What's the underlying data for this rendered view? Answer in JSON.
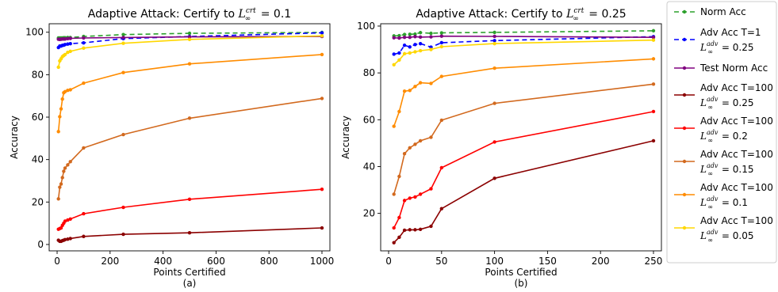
{
  "chart_data": [
    {
      "type": "line",
      "title": "Adaptive Attack: Certify to ",
      "title_math": "L",
      "title_sup": "crt",
      "title_sub": "∞",
      "title_value": " = 0.1",
      "xlabel": "Points Certified",
      "ylabel": "Accuracy",
      "caption": "(a)",
      "xlim": [
        -30,
        1030
      ],
      "ylim": [
        -3,
        104
      ],
      "xticks": [
        0,
        200,
        400,
        600,
        800,
        1000
      ],
      "yticks": [
        0,
        20,
        40,
        60,
        80,
        100
      ],
      "x": [
        5,
        10,
        15,
        20,
        25,
        30,
        40,
        50,
        100,
        250,
        500,
        1000
      ],
      "series": [
        {
          "name": "Norm Acc",
          "color": "#2ca02c",
          "dash": "6,4",
          "values": [
            97.3,
            97.3,
            97.3,
            97.3,
            97.4,
            97.4,
            97.5,
            97.5,
            98,
            98.9,
            99.5,
            99.9
          ]
        },
        {
          "name": "Adv Acc T=1",
          "sup": "adv",
          "sub": "∞",
          "value": " = 0.25",
          "color": "#0000ff",
          "dash": "6,4",
          "values": [
            92.8,
            93.5,
            93.5,
            93.8,
            93.9,
            94.2,
            94.4,
            94.6,
            95,
            97,
            98,
            99.7
          ]
        },
        {
          "name": "Test Norm Acc",
          "color": "#800080",
          "dash": "",
          "values": [
            96.7,
            96.6,
            96.7,
            96.8,
            96.8,
            96.8,
            97,
            97.1,
            97.3,
            97.5,
            97.8,
            98
          ]
        },
        {
          "name": "Adv Acc T=100",
          "sup": "adv",
          "sub": "∞",
          "value": " = 0.25",
          "color": "#8b0000",
          "dash": "",
          "values": [
            2,
            1.5,
            1.5,
            1.8,
            2,
            2.3,
            2.5,
            2.8,
            3.8,
            4.8,
            5.5,
            7.8
          ]
        },
        {
          "name": "Adv Acc T=100",
          "sup": "adv",
          "sub": "∞",
          "value": " = 0.2",
          "color": "#ff0000",
          "dash": "",
          "values": [
            7.2,
            7.5,
            7.8,
            9,
            10,
            11,
            11.5,
            12,
            14.5,
            17.5,
            21.3,
            26
          ]
        },
        {
          "name": "Adv Acc T=100",
          "sup": "adv",
          "sub": "∞",
          "value": " = 0.15",
          "color": "#d2691e",
          "dash": "",
          "values": [
            21.5,
            27,
            28.5,
            31.5,
            34.5,
            36,
            37.5,
            39,
            45.5,
            51.8,
            59.5,
            68.8
          ]
        },
        {
          "name": "Adv Acc T=100",
          "sup": "adv",
          "sub": "∞",
          "value": " = 0.1",
          "color": "#ff8c00",
          "dash": "",
          "values": [
            53.2,
            60.2,
            63.9,
            68.5,
            71.5,
            72,
            72.6,
            72.9,
            76,
            81,
            85.1,
            89.5
          ]
        },
        {
          "name": "Adv Acc T=100",
          "sup": "adv",
          "sub": "∞",
          "value": " = 0.05",
          "color": "#ffd700",
          "dash": "",
          "values": [
            83.5,
            86.5,
            87.5,
            88.5,
            89,
            89.5,
            90.5,
            91,
            92.5,
            94.8,
            96.6,
            98.3
          ]
        }
      ]
    },
    {
      "type": "line",
      "title": "Adaptive Attack: Certify to ",
      "title_math": "L",
      "title_sup": "crt",
      "title_sub": "∞",
      "title_value": " = 0.25",
      "xlabel": "Points Certified",
      "ylabel": "Accuracy",
      "caption": "(b)",
      "xlim": [
        -7.5,
        257.5
      ],
      "ylim": [
        4,
        101
      ],
      "xticks": [
        0,
        50,
        100,
        150,
        200,
        250
      ],
      "yticks": [
        20,
        40,
        60,
        80,
        100
      ],
      "x": [
        5,
        10,
        15,
        20,
        25,
        30,
        40,
        50,
        100,
        250
      ],
      "series": [
        {
          "name": "Norm Acc",
          "color": "#2ca02c",
          "dash": "6,4",
          "values": [
            95.8,
            95.9,
            96.4,
            96.5,
            96.6,
            97.2,
            96.9,
            97.1,
            97.3,
            98
          ]
        },
        {
          "name": "Adv Acc T=1",
          "color": "#0000ff",
          "dash": "6,4",
          "values": [
            88,
            88.5,
            91.8,
            91.1,
            92.1,
            92.5,
            91,
            92.9,
            93.8,
            95.5
          ]
        },
        {
          "name": "Test Norm Acc",
          "color": "#800080",
          "dash": "",
          "values": [
            95,
            94.9,
            95.2,
            95.2,
            95.5,
            95.3,
            95.4,
            95.7,
            95.6,
            95.2
          ]
        },
        {
          "name": "Adv Acc T=100",
          "color": "#8b0000",
          "dash": "",
          "values": [
            7.5,
            9.8,
            12.8,
            13,
            13,
            13.2,
            14.5,
            22,
            35,
            51
          ]
        },
        {
          "name": "Adv Acc T=100",
          "color": "#ff0000",
          "dash": "",
          "values": [
            13.8,
            18.2,
            25.5,
            26.5,
            27,
            28.2,
            30.5,
            39.5,
            50.5,
            63.5
          ]
        },
        {
          "name": "Adv Acc T=100",
          "color": "#d2691e",
          "dash": "",
          "values": [
            28.2,
            35.8,
            45.5,
            48,
            49.5,
            51,
            52.5,
            59.8,
            67,
            75.2
          ]
        },
        {
          "name": "Adv Acc T=100",
          "color": "#ff8c00",
          "dash": "",
          "values": [
            57.2,
            63.5,
            72.2,
            72.5,
            74.2,
            75.8,
            75.5,
            78.5,
            82,
            86
          ]
        },
        {
          "name": "Adv Acc T=100",
          "color": "#ffd700",
          "dash": "",
          "values": [
            83.5,
            85.5,
            88.2,
            88.5,
            89,
            89.5,
            90,
            91.2,
            92.5,
            94
          ]
        }
      ]
    }
  ],
  "legend": {
    "placement": "right",
    "entries": [
      {
        "label": "Norm Acc",
        "color": "#2ca02c",
        "dash": "6,4"
      },
      {
        "label": "Adv Acc T=1",
        "math": "L",
        "sup": "adv",
        "sub": "∞",
        "value": " = 0.25",
        "color": "#0000ff",
        "dash": "6,4"
      },
      {
        "label": "Test Norm Acc",
        "color": "#800080",
        "dash": ""
      },
      {
        "label": "Adv Acc T=100",
        "math": "L",
        "sup": "adv",
        "sub": "∞",
        "value": " = 0.25",
        "color": "#8b0000",
        "dash": ""
      },
      {
        "label": "Adv Acc T=100",
        "math": "L",
        "sup": "adv",
        "sub": "∞",
        "value": " = 0.2",
        "color": "#ff0000",
        "dash": ""
      },
      {
        "label": "Adv Acc T=100",
        "math": "L",
        "sup": "adv",
        "sub": "∞",
        "value": " = 0.15",
        "color": "#d2691e",
        "dash": ""
      },
      {
        "label": "Adv Acc T=100",
        "math": "L",
        "sup": "adv",
        "sub": "∞",
        "value": " = 0.1",
        "color": "#ff8c00",
        "dash": ""
      },
      {
        "label": "Adv Acc T=100",
        "math": "L",
        "sup": "adv",
        "sub": "∞",
        "value": " = 0.05",
        "color": "#ffd700",
        "dash": ""
      }
    ]
  }
}
